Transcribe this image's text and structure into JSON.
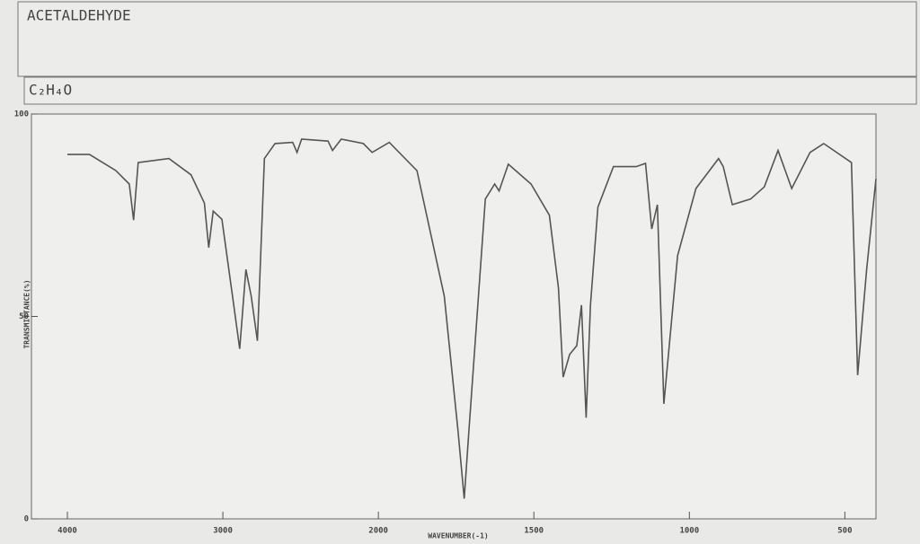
{
  "chart_data": {
    "type": "line",
    "title": "ACETALDEHYDE",
    "subtitle": "C₂H₄O",
    "y_label": "TRANSMITTANCE(%)",
    "x_label": "WAVENUMBER(-1)",
    "xlim": [
      4000,
      400
    ],
    "xbreak": 2000,
    "xticks": [
      4000,
      3000,
      2000,
      1500,
      1000,
      500
    ],
    "ylim": [
      0,
      100
    ],
    "yticks": [
      0,
      50,
      100
    ],
    "series": [
      {
        "name": "ACETALDEHYDE",
        "color": "#555555",
        "x": [
          4000,
          3858,
          3688,
          3602,
          3574,
          3545,
          3347,
          3205,
          3119,
          3091,
          3062,
          3006,
          2938,
          2892,
          2852,
          2818,
          2778,
          2733,
          2665,
          2551,
          2523,
          2494,
          2324,
          2295,
          2239,
          2097,
          2040,
          1965,
          1876,
          1788,
          1744,
          1724,
          1709,
          1656,
          1626,
          1612,
          1582,
          1509,
          1450,
          1421,
          1406,
          1385,
          1362,
          1347,
          1332,
          1318,
          1294,
          1244,
          1171,
          1141,
          1121,
          1103,
          1082,
          1038,
          979,
          906,
          891,
          862,
          803,
          759,
          715,
          671,
          612,
          568,
          479,
          459,
          430,
          400
        ],
        "values": [
          90,
          90,
          86,
          82.7,
          73.8,
          88,
          89,
          85,
          78,
          67,
          76,
          74,
          55,
          42,
          61.6,
          55,
          44,
          89,
          92.7,
          93,
          90.5,
          93.8,
          93.3,
          91,
          93.8,
          92.7,
          90.5,
          93,
          86,
          55,
          21.7,
          5,
          21.7,
          79,
          82.7,
          81,
          87.6,
          82.7,
          75,
          57,
          35,
          40.6,
          42.8,
          52.8,
          25,
          52.8,
          77,
          87,
          87,
          87.8,
          71.6,
          77.6,
          28.4,
          65,
          81.6,
          89,
          87,
          77.6,
          79,
          82,
          91,
          81.6,
          90.5,
          92.7,
          88,
          35.5,
          61.6,
          84
        ]
      }
    ]
  }
}
